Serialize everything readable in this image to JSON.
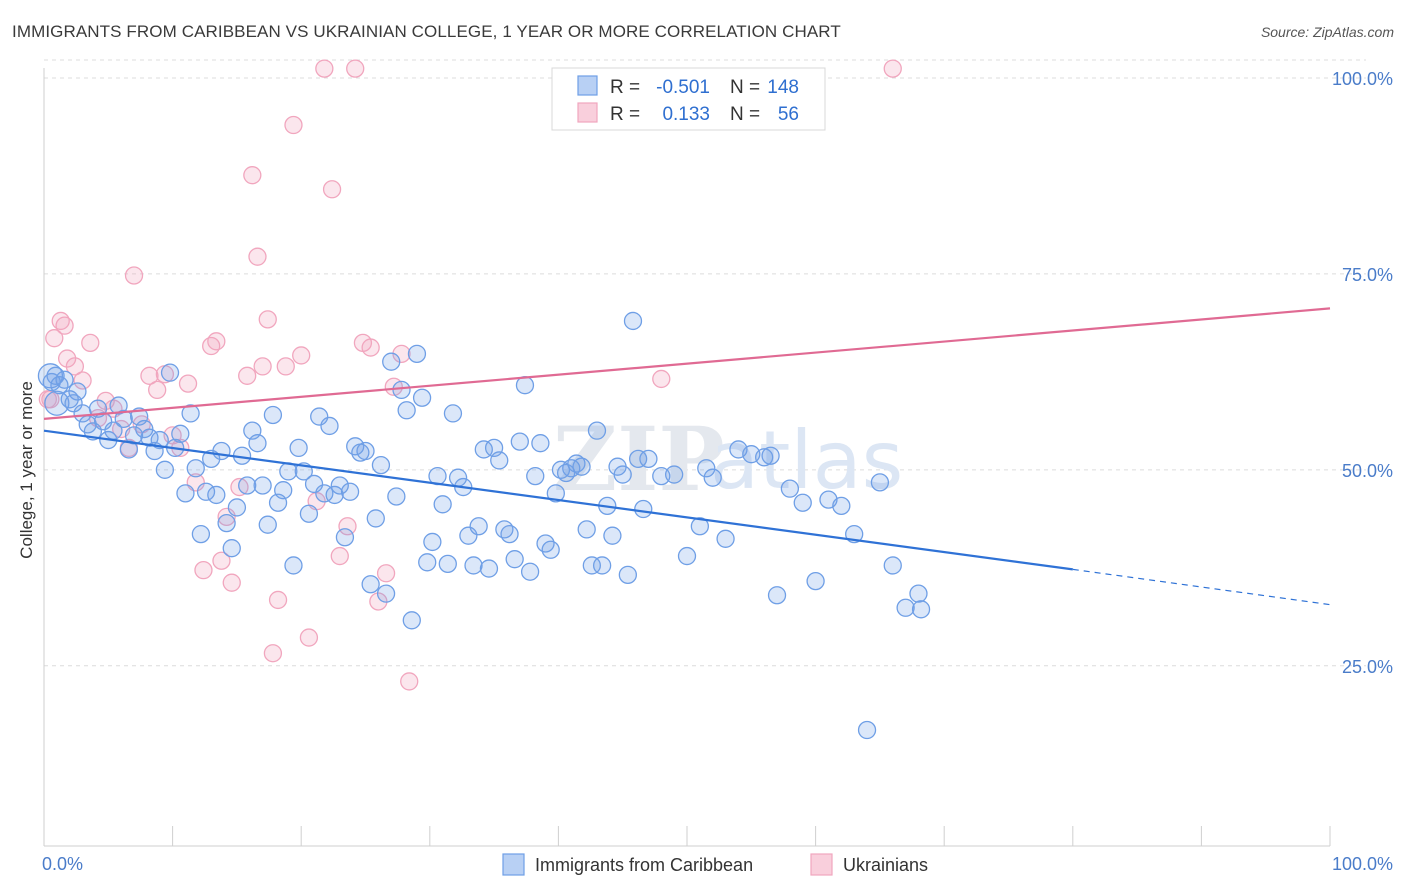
{
  "title": "IMMIGRANTS FROM CARIBBEAN VS UKRAINIAN COLLEGE, 1 YEAR OR MORE CORRELATION CHART",
  "source": "Source: ZipAtlas.com",
  "watermark": {
    "zip": "ZIP",
    "atlas": "atlas"
  },
  "legend": {
    "rows": [
      {
        "r_label": "R =",
        "r_value": "-0.501",
        "n_label": "N =",
        "n_value": "148"
      },
      {
        "r_label": "R =",
        "r_value": "0.133",
        "n_label": "N =",
        "n_value": "56"
      }
    ]
  },
  "bottom_legend": [
    "Immigrants from Caribbean",
    "Ukrainians"
  ],
  "chart_data": {
    "type": "scatter",
    "xlabel": "",
    "ylabel": "College, 1 year or more",
    "xlim": [
      0,
      100
    ],
    "ylim": [
      2,
      100
    ],
    "x_tick_labels": [
      "0.0%",
      "100.0%"
    ],
    "y_ticks": [
      25,
      50,
      75,
      100
    ],
    "y_tick_labels": [
      "25.0%",
      "50.0%",
      "75.0%",
      "100.0%"
    ],
    "grid": "horizontal dashed",
    "colors": {
      "caribbean": "#6f9fe6",
      "caribbean_line": "#2f72d6",
      "ukrainian": "#f1a6be",
      "ukrainian_line": "#e06a93"
    },
    "series": [
      {
        "name": "Immigrants from Caribbean",
        "trend": {
          "x": [
            0,
            80
          ],
          "y": [
            55.0,
            37.3
          ],
          "dashed_to": [
            100,
            32.8
          ]
        },
        "points": [
          [
            0.6,
            61.2
          ],
          [
            0.9,
            62.0
          ],
          [
            1.2,
            60.8
          ],
          [
            1.6,
            61.5
          ],
          [
            2.0,
            59.0
          ],
          [
            2.3,
            58.5
          ],
          [
            2.6,
            60.0
          ],
          [
            3.0,
            57.2
          ],
          [
            3.4,
            55.8
          ],
          [
            3.8,
            54.9
          ],
          [
            4.2,
            57.8
          ],
          [
            4.6,
            56.2
          ],
          [
            5.0,
            53.8
          ],
          [
            5.4,
            55.0
          ],
          [
            5.8,
            58.2
          ],
          [
            6.2,
            56.5
          ],
          [
            6.6,
            52.6
          ],
          [
            7.0,
            54.4
          ],
          [
            7.4,
            56.8
          ],
          [
            7.8,
            55.2
          ],
          [
            8.2,
            54.1
          ],
          [
            8.6,
            52.4
          ],
          [
            9.0,
            53.8
          ],
          [
            9.4,
            50.0
          ],
          [
            9.8,
            62.4
          ],
          [
            10.2,
            52.8
          ],
          [
            10.6,
            54.6
          ],
          [
            11.0,
            47.0
          ],
          [
            11.4,
            57.2
          ],
          [
            11.8,
            50.2
          ],
          [
            12.2,
            41.8
          ],
          [
            12.6,
            47.2
          ],
          [
            13.0,
            51.4
          ],
          [
            13.4,
            46.8
          ],
          [
            13.8,
            52.4
          ],
          [
            14.2,
            43.2
          ],
          [
            14.6,
            40.0
          ],
          [
            15.0,
            45.2
          ],
          [
            15.4,
            51.8
          ],
          [
            15.8,
            48.0
          ],
          [
            16.2,
            55.0
          ],
          [
            16.6,
            53.4
          ],
          [
            17.0,
            48.0
          ],
          [
            17.4,
            43.0
          ],
          [
            17.8,
            57.0
          ],
          [
            18.2,
            45.8
          ],
          [
            18.6,
            47.4
          ],
          [
            19.0,
            49.8
          ],
          [
            19.4,
            37.8
          ],
          [
            19.8,
            52.8
          ],
          [
            20.2,
            49.8
          ],
          [
            20.6,
            44.4
          ],
          [
            21.0,
            48.2
          ],
          [
            21.4,
            56.8
          ],
          [
            21.8,
            47.0
          ],
          [
            22.2,
            55.6
          ],
          [
            22.6,
            46.8
          ],
          [
            23.0,
            48.0
          ],
          [
            23.4,
            41.4
          ],
          [
            23.8,
            47.2
          ],
          [
            24.2,
            53.0
          ],
          [
            24.6,
            52.2
          ],
          [
            25.0,
            52.4
          ],
          [
            25.4,
            35.4
          ],
          [
            25.8,
            43.8
          ],
          [
            26.2,
            50.6
          ],
          [
            26.6,
            34.2
          ],
          [
            27.0,
            63.8
          ],
          [
            27.4,
            46.6
          ],
          [
            27.8,
            60.2
          ],
          [
            28.2,
            57.6
          ],
          [
            28.6,
            30.8
          ],
          [
            29.0,
            64.8
          ],
          [
            29.4,
            59.2
          ],
          [
            29.8,
            38.2
          ],
          [
            30.2,
            40.8
          ],
          [
            30.6,
            49.2
          ],
          [
            31.0,
            45.6
          ],
          [
            31.4,
            38.0
          ],
          [
            31.8,
            57.2
          ],
          [
            32.2,
            49.0
          ],
          [
            32.6,
            47.8
          ],
          [
            33.0,
            41.6
          ],
          [
            33.4,
            37.8
          ],
          [
            33.8,
            42.8
          ],
          [
            34.2,
            52.6
          ],
          [
            34.6,
            37.4
          ],
          [
            35.0,
            52.8
          ],
          [
            35.4,
            51.2
          ],
          [
            35.8,
            42.4
          ],
          [
            36.2,
            41.8
          ],
          [
            36.6,
            38.6
          ],
          [
            37.0,
            53.6
          ],
          [
            37.4,
            60.8
          ],
          [
            37.8,
            37.0
          ],
          [
            38.2,
            49.2
          ],
          [
            38.6,
            53.4
          ],
          [
            39.0,
            40.6
          ],
          [
            39.4,
            39.8
          ],
          [
            39.8,
            47.0
          ],
          [
            40.2,
            50.0
          ],
          [
            40.6,
            49.6
          ],
          [
            41.0,
            50.2
          ],
          [
            41.4,
            50.8
          ],
          [
            41.8,
            50.4
          ],
          [
            42.2,
            42.4
          ],
          [
            42.6,
            37.8
          ],
          [
            43.0,
            55.0
          ],
          [
            43.4,
            37.8
          ],
          [
            43.8,
            45.4
          ],
          [
            44.2,
            41.6
          ],
          [
            44.6,
            50.4
          ],
          [
            45.0,
            49.4
          ],
          [
            45.4,
            36.6
          ],
          [
            45.8,
            69.0
          ],
          [
            46.2,
            51.4
          ],
          [
            46.6,
            45.0
          ],
          [
            47.0,
            51.4
          ],
          [
            48.0,
            49.2
          ],
          [
            49.0,
            49.4
          ],
          [
            50.0,
            39.0
          ],
          [
            51.0,
            42.8
          ],
          [
            51.5,
            50.2
          ],
          [
            52.0,
            49.0
          ],
          [
            53.0,
            41.2
          ],
          [
            54.0,
            52.6
          ],
          [
            55.0,
            52.0
          ],
          [
            56.0,
            51.6
          ],
          [
            56.5,
            51.8
          ],
          [
            57.0,
            34.0
          ],
          [
            58.0,
            47.6
          ],
          [
            59.0,
            45.8
          ],
          [
            60.0,
            35.8
          ],
          [
            61.0,
            46.2
          ],
          [
            62.0,
            45.4
          ],
          [
            63.0,
            41.8
          ],
          [
            64.0,
            16.8
          ],
          [
            65.0,
            48.4
          ],
          [
            66.0,
            37.8
          ],
          [
            67.0,
            32.4
          ],
          [
            68.0,
            34.2
          ],
          [
            68.2,
            32.2
          ]
        ],
        "large_points": [
          [
            0.5,
            62.0
          ],
          [
            1.0,
            58.5
          ]
        ]
      },
      {
        "name": "Ukrainians",
        "trend": {
          "x": [
            0,
            100
          ],
          "y": [
            56.5,
            70.6
          ]
        },
        "points": [
          [
            0.5,
            59.0
          ],
          [
            0.8,
            66.8
          ],
          [
            1.3,
            69.0
          ],
          [
            1.8,
            64.2
          ],
          [
            2.4,
            63.2
          ],
          [
            3.0,
            61.4
          ],
          [
            3.6,
            66.2
          ],
          [
            4.2,
            56.6
          ],
          [
            4.8,
            58.8
          ],
          [
            5.4,
            57.8
          ],
          [
            6.0,
            55.2
          ],
          [
            6.6,
            52.8
          ],
          [
            7.0,
            74.8
          ],
          [
            7.6,
            55.8
          ],
          [
            8.2,
            62.0
          ],
          [
            8.8,
            60.2
          ],
          [
            9.4,
            62.2
          ],
          [
            10.0,
            54.4
          ],
          [
            10.6,
            52.8
          ],
          [
            11.2,
            61.0
          ],
          [
            11.8,
            48.4
          ],
          [
            12.4,
            37.2
          ],
          [
            13.0,
            65.8
          ],
          [
            13.4,
            66.4
          ],
          [
            13.8,
            38.4
          ],
          [
            14.2,
            44.0
          ],
          [
            14.6,
            35.6
          ],
          [
            15.2,
            47.8
          ],
          [
            15.8,
            62.0
          ],
          [
            16.2,
            87.6
          ],
          [
            16.6,
            77.2
          ],
          [
            17.0,
            63.2
          ],
          [
            17.4,
            69.2
          ],
          [
            17.8,
            26.6
          ],
          [
            18.2,
            33.4
          ],
          [
            18.8,
            63.2
          ],
          [
            19.4,
            94.0
          ],
          [
            20.0,
            64.6
          ],
          [
            20.6,
            28.6
          ],
          [
            21.2,
            46.0
          ],
          [
            21.8,
            101.2
          ],
          [
            22.4,
            85.8
          ],
          [
            23.0,
            39.0
          ],
          [
            23.6,
            42.8
          ],
          [
            24.2,
            101.2
          ],
          [
            24.8,
            66.2
          ],
          [
            25.4,
            65.6
          ],
          [
            26.0,
            33.2
          ],
          [
            26.6,
            36.8
          ],
          [
            27.2,
            60.6
          ],
          [
            27.8,
            64.8
          ],
          [
            28.4,
            23.0
          ],
          [
            48.0,
            61.6
          ],
          [
            66.0,
            101.2
          ],
          [
            0.3,
            59.0
          ],
          [
            1.6,
            68.4
          ]
        ]
      }
    ]
  }
}
